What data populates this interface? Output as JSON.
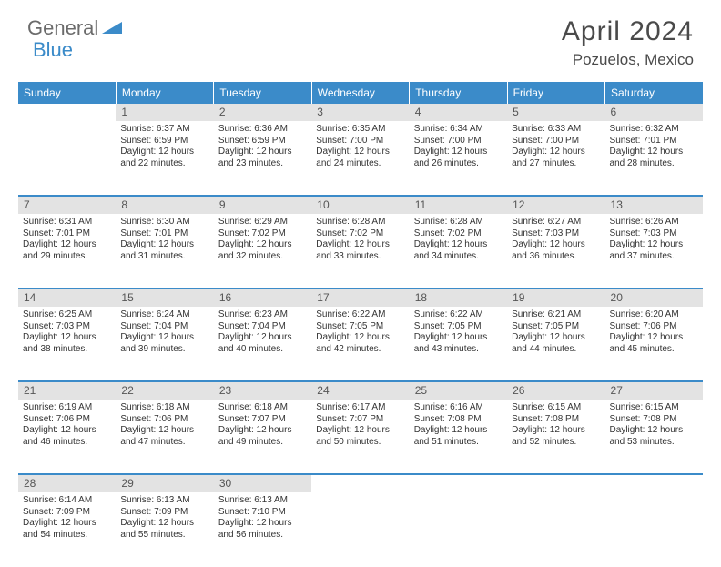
{
  "logo": {
    "general": "General",
    "blue": "Blue",
    "icon_color": "#3b8bc9"
  },
  "title": "April 2024",
  "location": "Pozuelos, Mexico",
  "colors": {
    "header_bg": "#3b8bc9",
    "header_text": "#ffffff",
    "daynum_bg": "#e3e3e3",
    "daynum_text": "#555555",
    "body_text": "#333333",
    "rule": "#3b8bc9"
  },
  "day_headers": [
    "Sunday",
    "Monday",
    "Tuesday",
    "Wednesday",
    "Thursday",
    "Friday",
    "Saturday"
  ],
  "weeks": [
    {
      "numbers": [
        "",
        "1",
        "2",
        "3",
        "4",
        "5",
        "6"
      ],
      "cells": [
        null,
        {
          "sunrise": "6:37 AM",
          "sunset": "6:59 PM",
          "daylight": "12 hours and 22 minutes."
        },
        {
          "sunrise": "6:36 AM",
          "sunset": "6:59 PM",
          "daylight": "12 hours and 23 minutes."
        },
        {
          "sunrise": "6:35 AM",
          "sunset": "7:00 PM",
          "daylight": "12 hours and 24 minutes."
        },
        {
          "sunrise": "6:34 AM",
          "sunset": "7:00 PM",
          "daylight": "12 hours and 26 minutes."
        },
        {
          "sunrise": "6:33 AM",
          "sunset": "7:00 PM",
          "daylight": "12 hours and 27 minutes."
        },
        {
          "sunrise": "6:32 AM",
          "sunset": "7:01 PM",
          "daylight": "12 hours and 28 minutes."
        }
      ]
    },
    {
      "numbers": [
        "7",
        "8",
        "9",
        "10",
        "11",
        "12",
        "13"
      ],
      "cells": [
        {
          "sunrise": "6:31 AM",
          "sunset": "7:01 PM",
          "daylight": "12 hours and 29 minutes."
        },
        {
          "sunrise": "6:30 AM",
          "sunset": "7:01 PM",
          "daylight": "12 hours and 31 minutes."
        },
        {
          "sunrise": "6:29 AM",
          "sunset": "7:02 PM",
          "daylight": "12 hours and 32 minutes."
        },
        {
          "sunrise": "6:28 AM",
          "sunset": "7:02 PM",
          "daylight": "12 hours and 33 minutes."
        },
        {
          "sunrise": "6:28 AM",
          "sunset": "7:02 PM",
          "daylight": "12 hours and 34 minutes."
        },
        {
          "sunrise": "6:27 AM",
          "sunset": "7:03 PM",
          "daylight": "12 hours and 36 minutes."
        },
        {
          "sunrise": "6:26 AM",
          "sunset": "7:03 PM",
          "daylight": "12 hours and 37 minutes."
        }
      ]
    },
    {
      "numbers": [
        "14",
        "15",
        "16",
        "17",
        "18",
        "19",
        "20"
      ],
      "cells": [
        {
          "sunrise": "6:25 AM",
          "sunset": "7:03 PM",
          "daylight": "12 hours and 38 minutes."
        },
        {
          "sunrise": "6:24 AM",
          "sunset": "7:04 PM",
          "daylight": "12 hours and 39 minutes."
        },
        {
          "sunrise": "6:23 AM",
          "sunset": "7:04 PM",
          "daylight": "12 hours and 40 minutes."
        },
        {
          "sunrise": "6:22 AM",
          "sunset": "7:05 PM",
          "daylight": "12 hours and 42 minutes."
        },
        {
          "sunrise": "6:22 AM",
          "sunset": "7:05 PM",
          "daylight": "12 hours and 43 minutes."
        },
        {
          "sunrise": "6:21 AM",
          "sunset": "7:05 PM",
          "daylight": "12 hours and 44 minutes."
        },
        {
          "sunrise": "6:20 AM",
          "sunset": "7:06 PM",
          "daylight": "12 hours and 45 minutes."
        }
      ]
    },
    {
      "numbers": [
        "21",
        "22",
        "23",
        "24",
        "25",
        "26",
        "27"
      ],
      "cells": [
        {
          "sunrise": "6:19 AM",
          "sunset": "7:06 PM",
          "daylight": "12 hours and 46 minutes."
        },
        {
          "sunrise": "6:18 AM",
          "sunset": "7:06 PM",
          "daylight": "12 hours and 47 minutes."
        },
        {
          "sunrise": "6:18 AM",
          "sunset": "7:07 PM",
          "daylight": "12 hours and 49 minutes."
        },
        {
          "sunrise": "6:17 AM",
          "sunset": "7:07 PM",
          "daylight": "12 hours and 50 minutes."
        },
        {
          "sunrise": "6:16 AM",
          "sunset": "7:08 PM",
          "daylight": "12 hours and 51 minutes."
        },
        {
          "sunrise": "6:15 AM",
          "sunset": "7:08 PM",
          "daylight": "12 hours and 52 minutes."
        },
        {
          "sunrise": "6:15 AM",
          "sunset": "7:08 PM",
          "daylight": "12 hours and 53 minutes."
        }
      ]
    },
    {
      "numbers": [
        "28",
        "29",
        "30",
        "",
        "",
        "",
        ""
      ],
      "cells": [
        {
          "sunrise": "6:14 AM",
          "sunset": "7:09 PM",
          "daylight": "12 hours and 54 minutes."
        },
        {
          "sunrise": "6:13 AM",
          "sunset": "7:09 PM",
          "daylight": "12 hours and 55 minutes."
        },
        {
          "sunrise": "6:13 AM",
          "sunset": "7:10 PM",
          "daylight": "12 hours and 56 minutes."
        },
        null,
        null,
        null,
        null
      ]
    }
  ],
  "labels": {
    "sunrise": "Sunrise:",
    "sunset": "Sunset:",
    "daylight": "Daylight:"
  }
}
